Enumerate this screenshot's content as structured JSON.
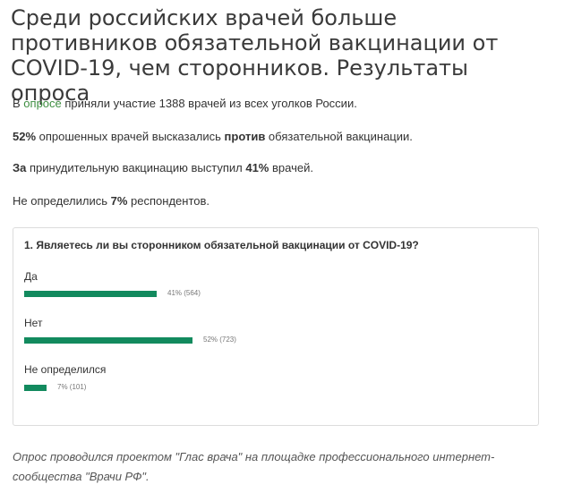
{
  "article": {
    "title": "Среди российских врачей больше противников обязательной вакцинации от COVID-19, чем сторонников. Результаты опроса",
    "p1": {
      "pre": "В ",
      "link": "опросе",
      "post": " приняли участие 1388 врачей из всех уголков России."
    },
    "p2": {
      "b1": "52%",
      "mid": " опрошенных врачей высказались ",
      "b2": "против",
      "post": " обязательной вакцинации."
    },
    "p3": {
      "b1": "За",
      "mid": " принудительную вакцинацию выступил ",
      "b2": "41%",
      "post": " врачей."
    },
    "p4": {
      "pre": "Не определились ",
      "b1": "7%",
      "post": " респондентов."
    }
  },
  "poll": {
    "question": "1. Являетесь ли вы сторонником обязательной вакцинации от COVID-19?",
    "bar_color": "#128a5e",
    "options": [
      {
        "label": "Да",
        "percent": 41,
        "count": 564,
        "value_text": "41% (564)"
      },
      {
        "label": "Нет",
        "percent": 52,
        "count": 723,
        "value_text": "52% (723)"
      },
      {
        "label": "Не определился",
        "percent": 7,
        "count": 101,
        "value_text": "7% (101)"
      }
    ]
  },
  "footer": {
    "text": "Опрос проводился проектом \"Глас врача\" на площадке профессионального интернет-сообщества \"Врачи РФ\"."
  }
}
